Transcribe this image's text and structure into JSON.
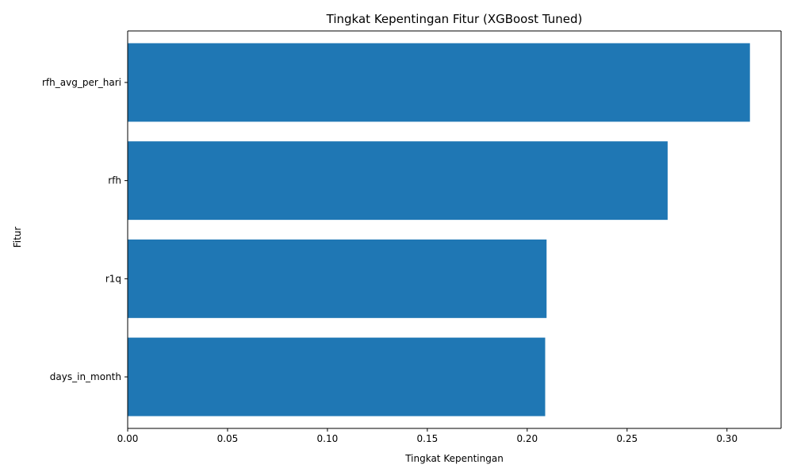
{
  "chart_data": {
    "type": "bar",
    "orientation": "horizontal",
    "title": "Tingkat Kepentingan Fitur (XGBoost Tuned)",
    "xlabel": "Tingkat Kepentingan",
    "ylabel": "Fitur",
    "categories": [
      "rfh_avg_per_hari",
      "rfh",
      "r1q",
      "days_in_month"
    ],
    "values": [
      0.3115,
      0.2703,
      0.2097,
      0.209
    ],
    "xlim": [
      0,
      0.3271
    ],
    "xticks": [
      "0.00",
      "0.05",
      "0.10",
      "0.15",
      "0.20",
      "0.25",
      "0.30"
    ],
    "bar_color": "#1f77b4",
    "grid": false,
    "legend": "none"
  }
}
